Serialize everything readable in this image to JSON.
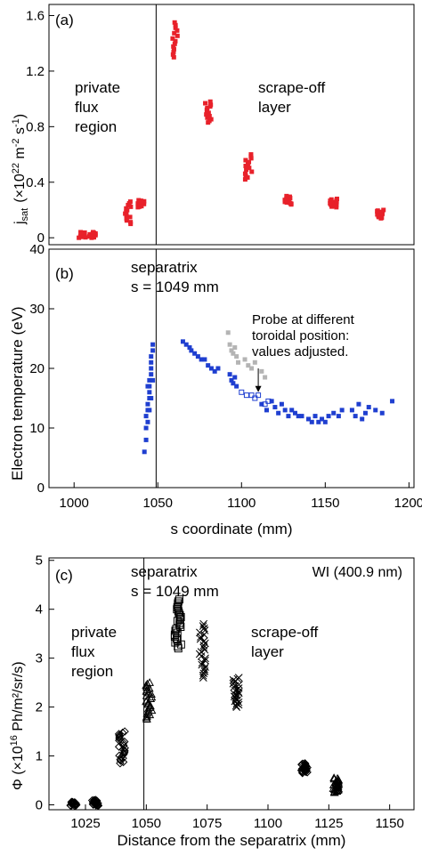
{
  "colors": {
    "red": "#e8212a",
    "blue": "#1f3fd0",
    "gray": "#b4b4b4",
    "axis": "#000000"
  },
  "chart_data": [
    {
      "panel": "(a)",
      "type": "scatter",
      "ylabel_main": "j",
      "ylabel_sub": "sat",
      "ylabel_unit": "(×10",
      "ylabel_unit_exp": "22",
      "ylabel_unit_mid": " m",
      "ylabel_unit_exp2": "-2",
      "ylabel_unit_end": " s",
      "ylabel_unit_exp3": "-1",
      "ylabel_unit_close": ")",
      "xlim": [
        985,
        1203
      ],
      "ylim": [
        -0.05,
        1.68
      ],
      "yticks": [
        "0",
        "0.4",
        "0.8",
        "1.2",
        "1.6"
      ],
      "ytick_values": [
        0,
        0.4,
        0.8,
        1.2,
        1.6
      ],
      "separatrix_x": 1049,
      "annotations": {
        "left": [
          "private",
          "flux",
          "region"
        ],
        "right": [
          "scrape-off",
          "layer"
        ]
      },
      "clusters": [
        {
          "x": 1005,
          "ymin": 0.0,
          "ymax": 0.04
        },
        {
          "x": 1011,
          "ymin": 0.0,
          "ymax": 0.04
        },
        {
          "x": 1032,
          "ymin": 0.1,
          "ymax": 0.26
        },
        {
          "x": 1040,
          "ymin": 0.22,
          "ymax": 0.27
        },
        {
          "x": 1060,
          "ymin": 1.3,
          "ymax": 1.55
        },
        {
          "x": 1080,
          "ymin": 0.83,
          "ymax": 0.98
        },
        {
          "x": 1104,
          "ymin": 0.42,
          "ymax": 0.6
        },
        {
          "x": 1128,
          "ymin": 0.24,
          "ymax": 0.3
        },
        {
          "x": 1155,
          "ymin": 0.22,
          "ymax": 0.28
        },
        {
          "x": 1183,
          "ymin": 0.14,
          "ymax": 0.2
        }
      ]
    },
    {
      "panel": "(b)",
      "type": "scatter",
      "ylabel": "Electron temperature (eV)",
      "xlabel": "s coordinate (mm)",
      "xlim": [
        985,
        1203
      ],
      "ylim": [
        0,
        40
      ],
      "xticks": [
        "1000",
        "1050",
        "1100",
        "1150",
        "1200"
      ],
      "xtick_values": [
        1000,
        1050,
        1100,
        1150,
        1200
      ],
      "yticks": [
        "0",
        "10",
        "20",
        "30",
        "40"
      ],
      "ytick_values": [
        0,
        10,
        20,
        30,
        40
      ],
      "separatrix_x": 1049,
      "separatrix_label": [
        "separatrix",
        "s = 1049 mm"
      ],
      "note": [
        "Probe at different",
        "toroidal position:",
        "values adjusted."
      ],
      "arrow": {
        "x": 1110,
        "y_from": 20,
        "y_to": 16
      },
      "blue_points": [
        [
          1042,
          6
        ],
        [
          1043,
          8
        ],
        [
          1043,
          10
        ],
        [
          1044,
          11
        ],
        [
          1044,
          13
        ],
        [
          1044,
          14
        ],
        [
          1045,
          15
        ],
        [
          1045,
          16
        ],
        [
          1045,
          17
        ],
        [
          1045,
          18
        ],
        [
          1046,
          19
        ],
        [
          1046,
          20
        ],
        [
          1046,
          21
        ],
        [
          1046,
          22
        ],
        [
          1047,
          23
        ],
        [
          1047,
          24
        ],
        [
          1043,
          12
        ],
        [
          1044,
          17
        ],
        [
          1045,
          13
        ],
        [
          1046,
          15
        ],
        [
          1047,
          18
        ],
        [
          1065,
          24.5
        ],
        [
          1067,
          24
        ],
        [
          1069,
          23.5
        ],
        [
          1070,
          23
        ],
        [
          1072,
          22.5
        ],
        [
          1074,
          22
        ],
        [
          1076,
          21.5
        ],
        [
          1078,
          21.5
        ],
        [
          1080,
          20.5
        ],
        [
          1082,
          20
        ],
        [
          1084,
          19.5
        ],
        [
          1086,
          20
        ],
        [
          1093,
          19
        ],
        [
          1094,
          18
        ],
        [
          1095,
          17.5
        ],
        [
          1096,
          18.5
        ],
        [
          1097,
          17
        ],
        [
          1112,
          14
        ],
        [
          1115,
          13
        ],
        [
          1118,
          14.5
        ],
        [
          1120,
          13.5
        ],
        [
          1122,
          12.5
        ],
        [
          1124,
          14
        ],
        [
          1126,
          13
        ],
        [
          1128,
          12
        ],
        [
          1130,
          13
        ],
        [
          1132,
          12.5
        ],
        [
          1134,
          12
        ],
        [
          1136,
          12
        ],
        [
          1140,
          11.5
        ],
        [
          1142,
          11
        ],
        [
          1144,
          12
        ],
        [
          1146,
          11
        ],
        [
          1148,
          11.5
        ],
        [
          1150,
          11
        ],
        [
          1152,
          12
        ],
        [
          1155,
          12.5
        ],
        [
          1158,
          12
        ],
        [
          1160,
          13
        ],
        [
          1166,
          13
        ],
        [
          1168,
          12
        ],
        [
          1170,
          14
        ],
        [
          1172,
          11.5
        ],
        [
          1174,
          12.5
        ],
        [
          1176,
          13.5
        ],
        [
          1180,
          13
        ],
        [
          1184,
          12.5
        ],
        [
          1190,
          14.5
        ]
      ],
      "blue_open_points": [
        [
          1100,
          16
        ],
        [
          1103,
          15.5
        ],
        [
          1106,
          15.5
        ],
        [
          1108,
          15
        ],
        [
          1110,
          15.5
        ],
        [
          1114,
          14
        ],
        [
          1116,
          14.5
        ]
      ],
      "gray_points": [
        [
          1092,
          26
        ],
        [
          1093,
          24
        ],
        [
          1094,
          23
        ],
        [
          1095,
          22.5
        ],
        [
          1096,
          23.5
        ],
        [
          1097,
          22
        ],
        [
          1098,
          21
        ],
        [
          1102,
          21.5
        ],
        [
          1104,
          20.5
        ],
        [
          1106,
          20
        ],
        [
          1108,
          21
        ],
        [
          1112,
          19.5
        ],
        [
          1114,
          18.5
        ]
      ]
    },
    {
      "panel": "(c)",
      "type": "scatter",
      "ylabel": "Φ (×10",
      "ylabel_exp": "16",
      "ylabel_end": " Ph/m²/sr/s)",
      "xlabel": "Distance from the separatrix (mm)",
      "legend_text": "WI (400.9 nm)",
      "xlim": [
        1010,
        1160
      ],
      "ylim": [
        -0.1,
        5.05
      ],
      "xticks": [
        "1025",
        "1050",
        "1075",
        "1100",
        "1125",
        "1150"
      ],
      "xtick_values": [
        1025,
        1050,
        1075,
        1100,
        1125,
        1150
      ],
      "yticks": [
        "0",
        "1",
        "2",
        "3",
        "4",
        "5"
      ],
      "ytick_values": [
        0,
        1,
        2,
        3,
        4,
        5
      ],
      "separatrix_x": 1049,
      "separatrix_label": [
        "separatrix",
        "s = 1049 mm"
      ],
      "annotations": {
        "left": [
          "private",
          "flux",
          "region"
        ],
        "right": [
          "scrape-off",
          "layer"
        ]
      },
      "clusters": [
        {
          "x": 1020,
          "ymin": -0.02,
          "ymax": 0.06,
          "marker": "diamond"
        },
        {
          "x": 1029,
          "ymin": -0.02,
          "ymax": 0.1,
          "marker": "diamond"
        },
        {
          "x": 1040,
          "ymin": 0.85,
          "ymax": 1.5,
          "marker": "diamond"
        },
        {
          "x": 1051,
          "ymin": 1.75,
          "ymax": 2.5,
          "marker": "triangle"
        },
        {
          "x": 1063,
          "ymin": 3.2,
          "ymax": 4.2,
          "marker": "square"
        },
        {
          "x": 1073,
          "ymin": 2.6,
          "ymax": 3.7,
          "marker": "cross"
        },
        {
          "x": 1087,
          "ymin": 2.0,
          "ymax": 2.6,
          "marker": "cross"
        },
        {
          "x": 1115,
          "ymin": 0.65,
          "ymax": 0.85,
          "marker": "diamond"
        },
        {
          "x": 1128,
          "ymin": 0.25,
          "ymax": 0.55,
          "marker": "triangle"
        }
      ]
    }
  ]
}
